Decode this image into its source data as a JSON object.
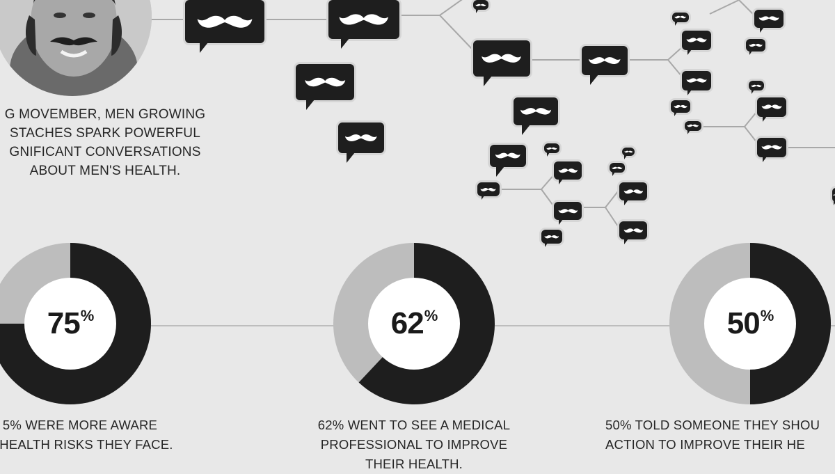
{
  "intro_text": "G MOVEMBER, MEN GROWING\nSTACHES SPARK POWERFUL\nGNIFICANT CONVERSATIONS\nABOUT MEN'S HEALTH.",
  "icons": {
    "avatar": "man-with-mustache-portrait",
    "bubble": "mustache-speech-bubble-icon"
  },
  "colors": {
    "background": "#e8e8e8",
    "dark": "#1e1e1e",
    "light": "#bdbdbd"
  },
  "stats": [
    {
      "value": "75",
      "unit": "%",
      "fraction": 0.75,
      "caption": "5% WERE MORE AWARE\nE HEALTH RISKS THEY FACE."
    },
    {
      "value": "62",
      "unit": "%",
      "fraction": 0.62,
      "caption": "62%  WENT TO SEE A MEDICAL\nPROFESSIONAL TO IMPROVE\nTHEIR HEALTH."
    },
    {
      "value": "50",
      "unit": "%",
      "fraction": 0.5,
      "caption": "50% TOLD SOMEONE THEY SHOU\nACTION TO IMPROVE THEIR HE"
    }
  ]
}
